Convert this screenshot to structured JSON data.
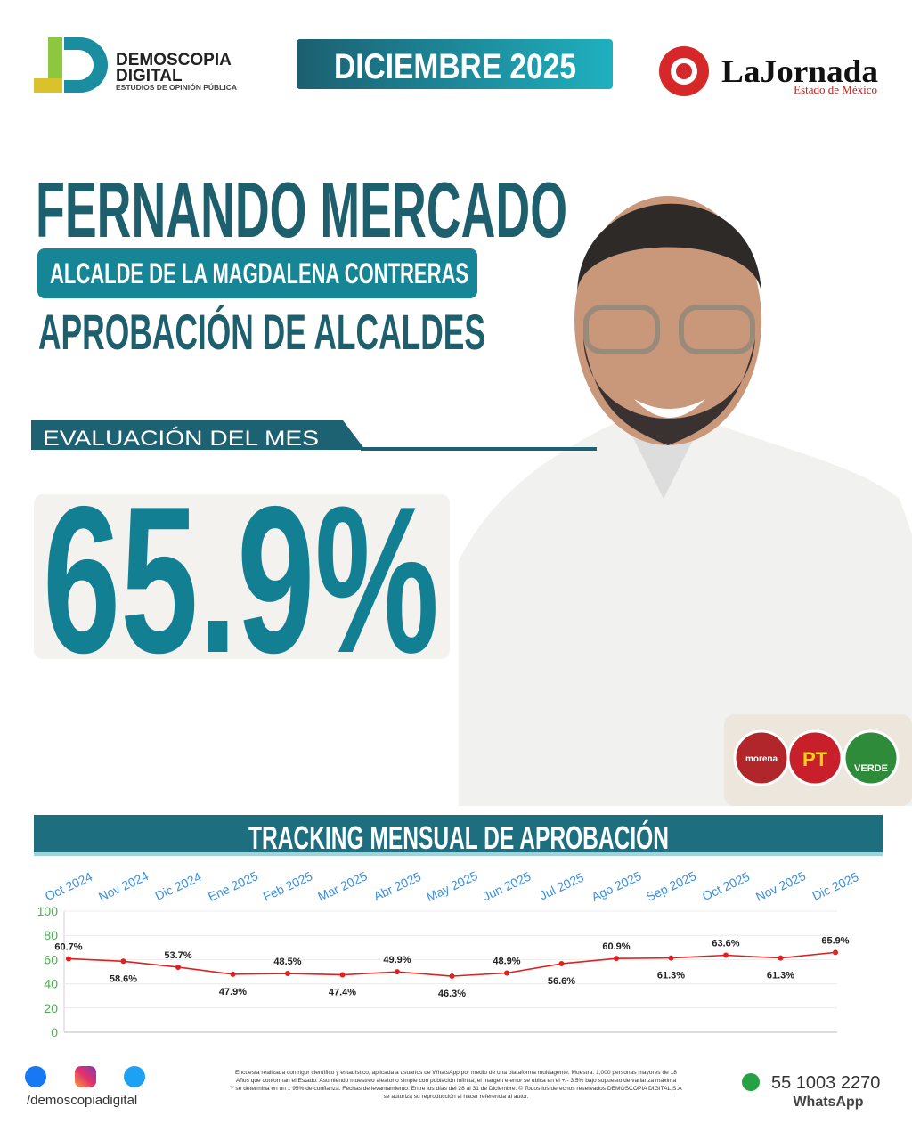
{
  "header": {
    "brand": "DEMOSCOPIA",
    "brand_line2": "DIGITAL",
    "brand_tagline": "ESTUDIOS DE OPINIÓN PÚBLICA",
    "period": "DICIEMBRE 2025",
    "partner": "LaJornada",
    "partner_region": "Estado de México"
  },
  "profile": {
    "name": "FERNANDO MERCADO",
    "role": "ALCALDE DE LA MAGDALENA CONTRERAS",
    "study": "APROBACIÓN DE ALCALDES",
    "evaluation_label": "EVALUACIÓN DEL MES",
    "evaluation_value": "65.9%",
    "parties": [
      "morena",
      "PT",
      "VERDE"
    ]
  },
  "chart_data": {
    "type": "line",
    "title": "TRACKING MENSUAL DE APROBACIÓN",
    "categories": [
      "Oct 2024",
      "Nov 2024",
      "Dic 2024",
      "Ene 2025",
      "Feb 2025",
      "Mar 2025",
      "Abr 2025",
      "May 2025",
      "Jun 2025",
      "Jul 2025",
      "Ago 2025",
      "Sep 2025",
      "Oct 2025",
      "Nov 2025",
      "Dic 2025"
    ],
    "values": [
      60.7,
      58.6,
      53.7,
      47.9,
      48.5,
      47.4,
      49.9,
      46.3,
      48.9,
      56.6,
      60.9,
      61.3,
      63.6,
      61.3,
      65.9
    ],
    "value_labels": [
      "60.7%",
      "58.6%",
      "53.7%",
      "47.9%",
      "48.5%",
      "47.4%",
      "49.9%",
      "46.3%",
      "48.9%",
      "56.6%",
      "60.9%",
      "61.3%",
      "63.6%",
      "61.3%",
      "65.9%"
    ],
    "color": "#e02020",
    "ylim": [
      0,
      100
    ],
    "yticks": [
      0,
      20,
      40,
      60,
      80,
      100
    ],
    "grid": true
  },
  "footer": {
    "social_handle": "/demoscopiadigital",
    "disclaimer": [
      "Encuesta realizada con rigor científico y estadístico, aplicada a usuarios de WhatsApp por medio de una plataforma multiagente. Muestra: 1,000 personas mayores de 18",
      "Años que conforman el Estado. Asumiendo muestreo aleatorio simple con población infinita, el margen e error se ubica en el +/- 3.5% bajo supuesto de varianza máxima",
      "Y se determina en un ‡ 95% de confianza. Fechas de levantamiento: Entre los días del 28 al 31 de Diciembre. © Todos los derechos reservados DEMOSCOPIA DIGITAL,S.A",
      "se autoriza su reproducción al hacer referencia al autor."
    ],
    "phone": "55 1003 2270",
    "phone_channel": "WhatsApp"
  }
}
